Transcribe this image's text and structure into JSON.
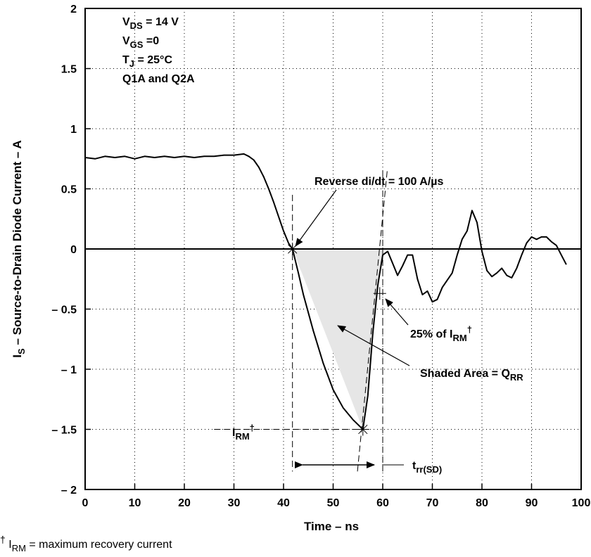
{
  "chart_data": {
    "type": "line",
    "xlabel": "Time – ns",
    "ylabel": {
      "prefix": "I",
      "sub": "S",
      "rest": " – Source-to-Drain Diode Current – A"
    },
    "xlim": [
      0,
      100
    ],
    "ylim": [
      -2,
      2
    ],
    "x_ticks": [
      0,
      10,
      20,
      30,
      40,
      50,
      60,
      70,
      80,
      90,
      100
    ],
    "x_tick_labels": [
      "0",
      "10",
      "20",
      "30",
      "40",
      "50",
      "60",
      "70",
      "80",
      "90",
      "100"
    ],
    "y_ticks": [
      2,
      1.5,
      1,
      0.5,
      0,
      -0.5,
      -1,
      -1.5,
      -2
    ],
    "y_tick_labels": [
      "2",
      "1.5",
      "1",
      "0.5",
      "0",
      "– 0.5",
      "– 1",
      "– 1.5",
      "– 2"
    ],
    "grid": true,
    "conditions": [
      {
        "main": "V",
        "sub": "DS",
        "rest": " = 14 V"
      },
      {
        "main": "V",
        "sub": "GS",
        "rest": " =0"
      },
      {
        "main": "T",
        "sub": "J",
        "rest": " = 25°C"
      },
      {
        "main": "Q1A and Q2A",
        "sub": "",
        "rest": ""
      }
    ],
    "series": [
      {
        "points": [
          [
            0,
            0.76
          ],
          [
            2,
            0.75
          ],
          [
            4,
            0.77
          ],
          [
            6,
            0.76
          ],
          [
            8,
            0.77
          ],
          [
            10,
            0.75
          ],
          [
            12,
            0.77
          ],
          [
            14,
            0.76
          ],
          [
            16,
            0.77
          ],
          [
            18,
            0.76
          ],
          [
            20,
            0.77
          ],
          [
            22,
            0.76
          ],
          [
            24,
            0.77
          ],
          [
            26,
            0.77
          ],
          [
            28,
            0.78
          ],
          [
            30,
            0.78
          ],
          [
            32,
            0.79
          ],
          [
            33,
            0.77
          ],
          [
            34,
            0.74
          ],
          [
            35,
            0.68
          ],
          [
            36,
            0.6
          ],
          [
            37,
            0.5
          ],
          [
            38,
            0.39
          ],
          [
            39,
            0.27
          ],
          [
            40,
            0.15
          ],
          [
            41,
            0.05
          ],
          [
            41.8,
            0.0
          ],
          [
            43,
            -0.2
          ],
          [
            44,
            -0.38
          ],
          [
            46,
            -0.68
          ],
          [
            48,
            -0.95
          ],
          [
            50,
            -1.17
          ],
          [
            52,
            -1.32
          ],
          [
            54,
            -1.42
          ],
          [
            55,
            -1.46
          ],
          [
            56,
            -1.5
          ],
          [
            57,
            -1.22
          ],
          [
            58,
            -0.7
          ],
          [
            59,
            -0.3
          ],
          [
            60,
            -0.05
          ],
          [
            61,
            -0.02
          ],
          [
            62,
            -0.12
          ],
          [
            63,
            -0.22
          ],
          [
            64,
            -0.14
          ],
          [
            65,
            -0.05
          ],
          [
            66,
            -0.05
          ],
          [
            67,
            -0.25
          ],
          [
            68,
            -0.38
          ],
          [
            69,
            -0.35
          ],
          [
            70,
            -0.44
          ],
          [
            71,
            -0.42
          ],
          [
            72,
            -0.32
          ],
          [
            74,
            -0.2
          ],
          [
            75,
            -0.05
          ],
          [
            76,
            0.08
          ],
          [
            77,
            0.15
          ],
          [
            78,
            0.32
          ],
          [
            79,
            0.22
          ],
          [
            80,
            -0.02
          ],
          [
            81,
            -0.18
          ],
          [
            82,
            -0.23
          ],
          [
            83,
            -0.2
          ],
          [
            84,
            -0.16
          ],
          [
            85,
            -0.22
          ],
          [
            86,
            -0.24
          ],
          [
            87,
            -0.16
          ],
          [
            88,
            -0.05
          ],
          [
            89,
            0.05
          ],
          [
            90,
            0.1
          ],
          [
            91,
            0.08
          ],
          [
            92,
            0.1
          ],
          [
            93,
            0.1
          ],
          [
            94,
            0.06
          ],
          [
            95,
            0.03
          ],
          [
            96,
            -0.05
          ],
          [
            97,
            -0.13
          ]
        ]
      }
    ],
    "qrr_region": [
      [
        41.8,
        0.0
      ],
      [
        56,
        -1.5
      ],
      [
        60,
        0.0
      ]
    ],
    "markers": [
      {
        "name": "recovery-start",
        "x": 41.8,
        "y": 0.0
      },
      {
        "name": "irm-peak",
        "x": 56,
        "y": -1.5
      },
      {
        "name": "25pct-point",
        "x": 59.4,
        "y": -0.37
      }
    ],
    "annotations": {
      "didt": "Reverse di/dt = 100 A/µs",
      "irm25": {
        "main": "25% of I",
        "sub": "RM",
        "sup": "†"
      },
      "qrr": {
        "main": "Shaded Area = Q",
        "sub": "RR"
      },
      "irm": {
        "main": "I",
        "sub": "RM",
        "sup": "†"
      },
      "trr": {
        "main": "t",
        "sub": "rr(SD)"
      }
    }
  },
  "footnote": {
    "dagger": "†",
    "main": " I",
    "sub": "RM",
    "rest": " = maximum recovery current"
  }
}
